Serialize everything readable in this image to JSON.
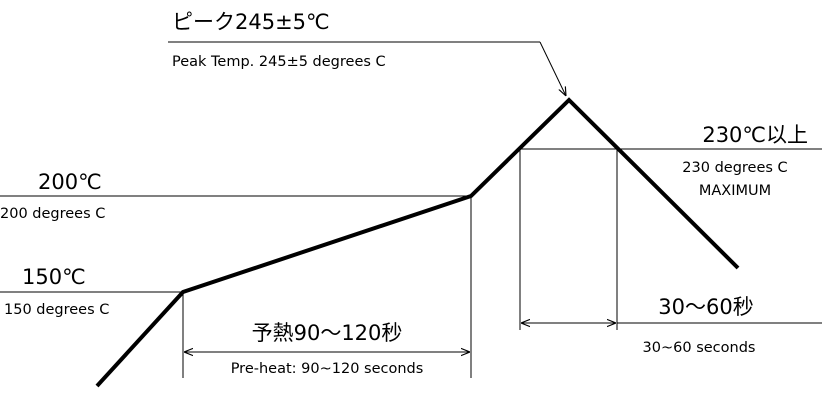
{
  "peak": {
    "label": "ピーク245±5℃",
    "subtitle": "Peak Temp. 245±5 degrees C"
  },
  "t230": {
    "label": "230℃以上",
    "subtitle_line1": "230 degrees C",
    "subtitle_line2": "MAXIMUM"
  },
  "t200": {
    "label": "200℃",
    "subtitle": "200 degrees C"
  },
  "t150": {
    "label": "150℃",
    "subtitle": "150 degrees C"
  },
  "preheat": {
    "label": "予熱90～120秒",
    "subtitle": "Pre-heat: 90~120 seconds"
  },
  "reflow_time": {
    "label": "30～60秒",
    "subtitle": "30~60 seconds"
  }
}
